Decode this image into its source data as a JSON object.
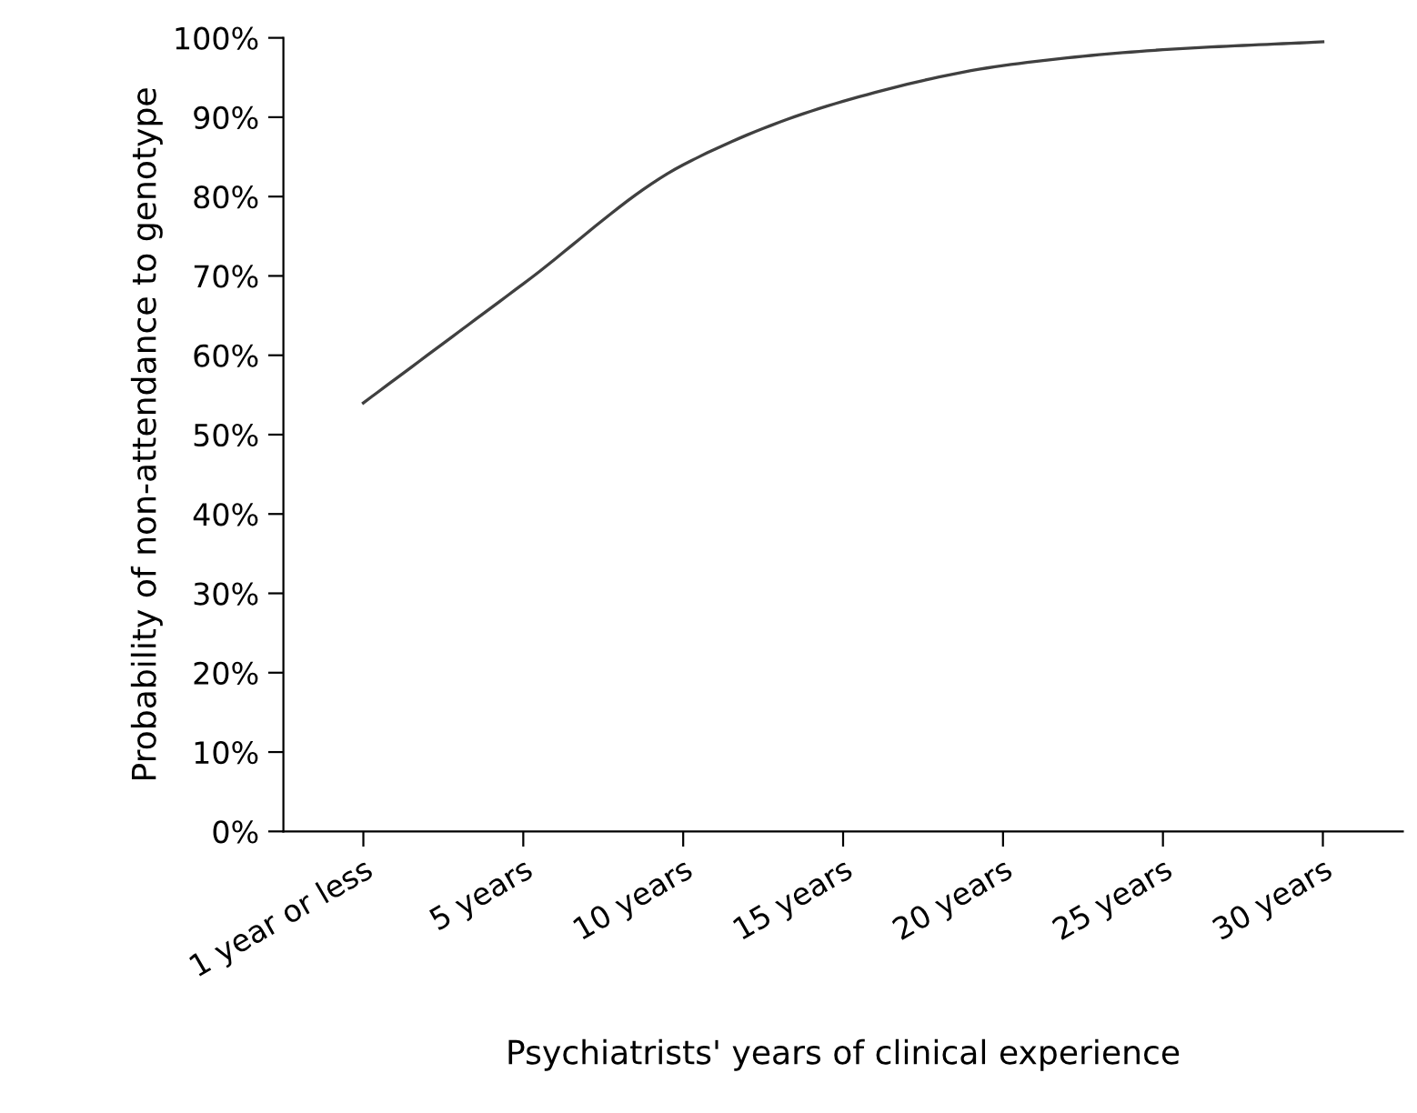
{
  "chart_data": {
    "type": "line",
    "xlabel": "Psychiatrists' years of clinical experience",
    "ylabel": "Probability of non-attendance to genotype",
    "categories": [
      "1 year or less",
      "5 years",
      "10 years",
      "15 years",
      "20 years",
      "25 years",
      "30 years"
    ],
    "series": [
      {
        "color": "#404040",
        "values": [
          54,
          69,
          84,
          92,
          96.5,
          98.5,
          99.5
        ]
      }
    ],
    "ylim": [
      0,
      100
    ],
    "yticks": [
      {
        "value": 0,
        "label": "0%"
      },
      {
        "value": 10,
        "label": "10%"
      },
      {
        "value": 20,
        "label": "20%"
      },
      {
        "value": 30,
        "label": "30%"
      },
      {
        "value": 40,
        "label": "40%"
      },
      {
        "value": 50,
        "label": "50%"
      },
      {
        "value": 60,
        "label": "60%"
      },
      {
        "value": 70,
        "label": "70%"
      },
      {
        "value": 80,
        "label": "80%"
      },
      {
        "value": 90,
        "label": "90%"
      },
      {
        "value": 100,
        "label": "100%"
      }
    ],
    "grid": false,
    "legend": false,
    "marker": "none",
    "line_style": "solid"
  }
}
